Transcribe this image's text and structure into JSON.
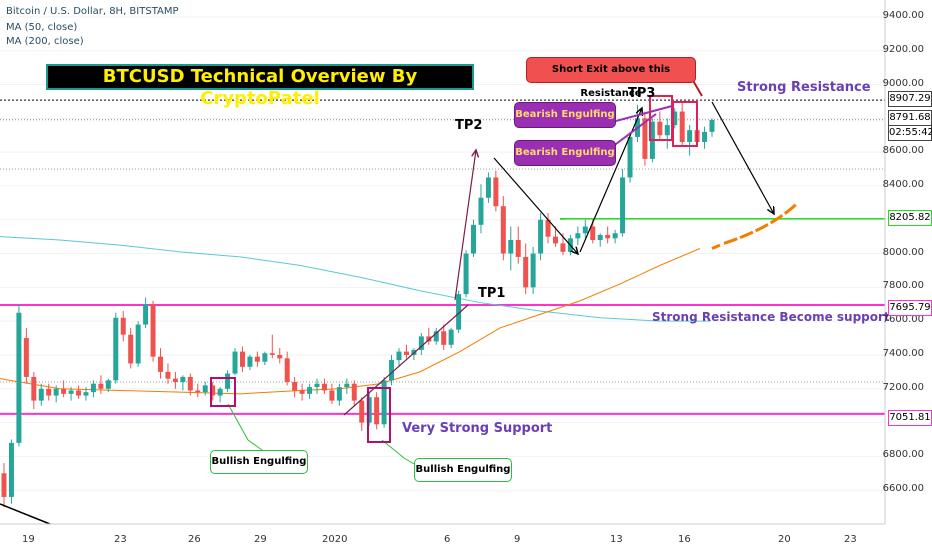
{
  "header": {
    "symbol": "Bitcoin / U.S. Dollar, 8H, BITSTAMP",
    "ma50": "MA (50, close)",
    "ma200": "MA (200, close)"
  },
  "banner": {
    "title": "BTCUSD Technical Overview By CryptoPatel"
  },
  "annotations": {
    "tp1": "TP1",
    "tp2": "TP2",
    "tp3": "TP3",
    "strong_resistance": "Strong Resistance",
    "resistance_support": "Strong Resistance Become support",
    "very_strong_support": "Very Strong Support",
    "short_exit": "Short Exit above this Resistance",
    "bearish_1": "Bearish Engulfing",
    "bearish_2": "Bearish Engulfing",
    "bullish_1": "Bullish Engulfing",
    "bullish_2": "Bullish Engulfing"
  },
  "price_tags": {
    "p1": "8907.29",
    "p2": "8791.68",
    "p3": "02:55:42",
    "p4": "8205.82",
    "p5": "7695.79",
    "p6": "7051.81"
  },
  "colors": {
    "up": "#26a69a",
    "down": "#ef5350",
    "ma50": "#f57c00",
    "ma200": "#5bc8d6",
    "magenta": "#ff33cc",
    "green_line": "#22dd22",
    "purple_text": "#6a3fb5"
  },
  "chart_data": {
    "type": "candlestick",
    "ylim": [
      6400,
      9500
    ],
    "y_ticks": [
      "9400.00",
      "9200.00",
      "9000.00",
      "8600.00",
      "8400.00",
      "8000.00",
      "7800.00",
      "7600.00",
      "7400.00",
      "7200.00",
      "6800.00",
      "6600.00"
    ],
    "x_ticks": [
      "19",
      "23",
      "26",
      "29",
      "2020",
      "6",
      "9",
      "13",
      "16",
      "20",
      "23"
    ],
    "horizontal_levels": [
      8907.29,
      8205.82,
      7695.79,
      7051.81
    ],
    "candles": [
      {
        "o": 6700,
        "h": 6760,
        "l": 6500,
        "c": 6560
      },
      {
        "o": 6560,
        "h": 6900,
        "l": 6520,
        "c": 6880
      },
      {
        "o": 6880,
        "h": 7700,
        "l": 6860,
        "c": 7650
      },
      {
        "o": 7500,
        "h": 7560,
        "l": 7230,
        "c": 7270
      },
      {
        "o": 7270,
        "h": 7300,
        "l": 7080,
        "c": 7130
      },
      {
        "o": 7130,
        "h": 7230,
        "l": 7100,
        "c": 7200
      },
      {
        "o": 7200,
        "h": 7230,
        "l": 7130,
        "c": 7160
      },
      {
        "o": 7160,
        "h": 7220,
        "l": 7120,
        "c": 7200
      },
      {
        "o": 7200,
        "h": 7250,
        "l": 7150,
        "c": 7170
      },
      {
        "o": 7170,
        "h": 7210,
        "l": 7130,
        "c": 7190
      },
      {
        "o": 7190,
        "h": 7220,
        "l": 7140,
        "c": 7160
      },
      {
        "o": 7160,
        "h": 7210,
        "l": 7130,
        "c": 7180
      },
      {
        "o": 7180,
        "h": 7250,
        "l": 7150,
        "c": 7230
      },
      {
        "o": 7230,
        "h": 7280,
        "l": 7170,
        "c": 7200
      },
      {
        "o": 7200,
        "h": 7260,
        "l": 7180,
        "c": 7250
      },
      {
        "o": 7250,
        "h": 7650,
        "l": 7230,
        "c": 7620
      },
      {
        "o": 7620,
        "h": 7660,
        "l": 7480,
        "c": 7520
      },
      {
        "o": 7520,
        "h": 7560,
        "l": 7320,
        "c": 7350
      },
      {
        "o": 7350,
        "h": 7600,
        "l": 7330,
        "c": 7580
      },
      {
        "o": 7580,
        "h": 7740,
        "l": 7560,
        "c": 7700
      },
      {
        "o": 7700,
        "h": 7720,
        "l": 7360,
        "c": 7390
      },
      {
        "o": 7390,
        "h": 7440,
        "l": 7260,
        "c": 7300
      },
      {
        "o": 7300,
        "h": 7350,
        "l": 7230,
        "c": 7260
      },
      {
        "o": 7260,
        "h": 7300,
        "l": 7200,
        "c": 7240
      },
      {
        "o": 7240,
        "h": 7280,
        "l": 7190,
        "c": 7270
      },
      {
        "o": 7270,
        "h": 7290,
        "l": 7160,
        "c": 7190
      },
      {
        "o": 7190,
        "h": 7230,
        "l": 7150,
        "c": 7180
      },
      {
        "o": 7180,
        "h": 7240,
        "l": 7160,
        "c": 7220
      },
      {
        "o": 7220,
        "h": 7240,
        "l": 7130,
        "c": 7160
      },
      {
        "o": 7160,
        "h": 7210,
        "l": 7120,
        "c": 7200
      },
      {
        "o": 7200,
        "h": 7310,
        "l": 7180,
        "c": 7290
      },
      {
        "o": 7290,
        "h": 7440,
        "l": 7280,
        "c": 7420
      },
      {
        "o": 7420,
        "h": 7450,
        "l": 7300,
        "c": 7330
      },
      {
        "o": 7330,
        "h": 7400,
        "l": 7310,
        "c": 7390
      },
      {
        "o": 7390,
        "h": 7420,
        "l": 7330,
        "c": 7360
      },
      {
        "o": 7360,
        "h": 7420,
        "l": 7340,
        "c": 7410
      },
      {
        "o": 7410,
        "h": 7520,
        "l": 7380,
        "c": 7400
      },
      {
        "o": 7400,
        "h": 7440,
        "l": 7350,
        "c": 7380
      },
      {
        "o": 7380,
        "h": 7420,
        "l": 7220,
        "c": 7240
      },
      {
        "o": 7240,
        "h": 7270,
        "l": 7150,
        "c": 7190
      },
      {
        "o": 7190,
        "h": 7230,
        "l": 7130,
        "c": 7170
      },
      {
        "o": 7170,
        "h": 7230,
        "l": 7140,
        "c": 7210
      },
      {
        "o": 7210,
        "h": 7260,
        "l": 7170,
        "c": 7230
      },
      {
        "o": 7230,
        "h": 7260,
        "l": 7170,
        "c": 7190
      },
      {
        "o": 7190,
        "h": 7230,
        "l": 7110,
        "c": 7130
      },
      {
        "o": 7130,
        "h": 7230,
        "l": 7100,
        "c": 7210
      },
      {
        "o": 7210,
        "h": 7260,
        "l": 7170,
        "c": 7230
      },
      {
        "o": 7230,
        "h": 7250,
        "l": 7100,
        "c": 7130
      },
      {
        "o": 7130,
        "h": 7150,
        "l": 6950,
        "c": 7000
      },
      {
        "o": 7000,
        "h": 7180,
        "l": 6980,
        "c": 7150
      },
      {
        "o": 7150,
        "h": 7180,
        "l": 6960,
        "c": 6990
      },
      {
        "o": 6990,
        "h": 7270,
        "l": 6970,
        "c": 7250
      },
      {
        "o": 7250,
        "h": 7400,
        "l": 7220,
        "c": 7370
      },
      {
        "o": 7370,
        "h": 7440,
        "l": 7330,
        "c": 7420
      },
      {
        "o": 7420,
        "h": 7460,
        "l": 7380,
        "c": 7400
      },
      {
        "o": 7400,
        "h": 7440,
        "l": 7370,
        "c": 7430
      },
      {
        "o": 7430,
        "h": 7530,
        "l": 7400,
        "c": 7510
      },
      {
        "o": 7510,
        "h": 7560,
        "l": 7460,
        "c": 7480
      },
      {
        "o": 7480,
        "h": 7560,
        "l": 7460,
        "c": 7540
      },
      {
        "o": 7540,
        "h": 7580,
        "l": 7430,
        "c": 7460
      },
      {
        "o": 7460,
        "h": 7560,
        "l": 7440,
        "c": 7550
      },
      {
        "o": 7550,
        "h": 7780,
        "l": 7530,
        "c": 7760
      },
      {
        "o": 7760,
        "h": 8020,
        "l": 7740,
        "c": 8000
      },
      {
        "o": 8000,
        "h": 8200,
        "l": 7980,
        "c": 8170
      },
      {
        "o": 8170,
        "h": 8410,
        "l": 8120,
        "c": 8330
      },
      {
        "o": 8330,
        "h": 8480,
        "l": 8300,
        "c": 8450
      },
      {
        "o": 8450,
        "h": 8490,
        "l": 8250,
        "c": 8280
      },
      {
        "o": 8280,
        "h": 8340,
        "l": 7960,
        "c": 8000
      },
      {
        "o": 8000,
        "h": 8160,
        "l": 7900,
        "c": 8080
      },
      {
        "o": 8080,
        "h": 8160,
        "l": 7940,
        "c": 7980
      },
      {
        "o": 7980,
        "h": 8060,
        "l": 7760,
        "c": 7800
      },
      {
        "o": 7800,
        "h": 8040,
        "l": 7760,
        "c": 8000
      },
      {
        "o": 8000,
        "h": 8240,
        "l": 7960,
        "c": 8200
      },
      {
        "o": 8200,
        "h": 8240,
        "l": 8060,
        "c": 8100
      },
      {
        "o": 8100,
        "h": 8160,
        "l": 8040,
        "c": 8060
      },
      {
        "o": 8060,
        "h": 8120,
        "l": 7990,
        "c": 8010
      },
      {
        "o": 8010,
        "h": 8110,
        "l": 7990,
        "c": 8090
      },
      {
        "o": 8090,
        "h": 8160,
        "l": 8050,
        "c": 8120
      },
      {
        "o": 8120,
        "h": 8200,
        "l": 8090,
        "c": 8160
      },
      {
        "o": 8160,
        "h": 8200,
        "l": 8060,
        "c": 8080
      },
      {
        "o": 8080,
        "h": 8120,
        "l": 8040,
        "c": 8110
      },
      {
        "o": 8110,
        "h": 8160,
        "l": 8060,
        "c": 8090
      },
      {
        "o": 8090,
        "h": 8140,
        "l": 8060,
        "c": 8120
      },
      {
        "o": 8120,
        "h": 8500,
        "l": 8100,
        "c": 8450
      },
      {
        "o": 8450,
        "h": 8720,
        "l": 8420,
        "c": 8690
      },
      {
        "o": 8690,
        "h": 8880,
        "l": 8660,
        "c": 8800
      },
      {
        "o": 8800,
        "h": 8840,
        "l": 8520,
        "c": 8560
      },
      {
        "o": 8560,
        "h": 8800,
        "l": 8540,
        "c": 8780
      },
      {
        "o": 8780,
        "h": 8840,
        "l": 8680,
        "c": 8700
      },
      {
        "o": 8700,
        "h": 8800,
        "l": 8620,
        "c": 8760
      },
      {
        "o": 8760,
        "h": 8860,
        "l": 8740,
        "c": 8840
      },
      {
        "o": 8840,
        "h": 8900,
        "l": 8640,
        "c": 8660
      },
      {
        "o": 8660,
        "h": 8760,
        "l": 8580,
        "c": 8730
      },
      {
        "o": 8730,
        "h": 8790,
        "l": 8640,
        "c": 8660
      },
      {
        "o": 8660,
        "h": 8750,
        "l": 8620,
        "c": 8720
      },
      {
        "o": 8720,
        "h": 8800,
        "l": 8690,
        "c": 8790
      }
    ],
    "ma50": [
      [
        0,
        7260
      ],
      [
        60,
        7200
      ],
      [
        120,
        7190
      ],
      [
        180,
        7180
      ],
      [
        240,
        7170
      ],
      [
        300,
        7190
      ],
      [
        340,
        7200
      ],
      [
        380,
        7230
      ],
      [
        420,
        7300
      ],
      [
        460,
        7420
      ],
      [
        500,
        7560
      ],
      [
        540,
        7640
      ],
      [
        580,
        7720
      ],
      [
        620,
        7820
      ],
      [
        660,
        7930
      ],
      [
        700,
        8030
      ]
    ],
    "ma200": [
      [
        0,
        8100
      ],
      [
        60,
        8080
      ],
      [
        120,
        8050
      ],
      [
        180,
        8010
      ],
      [
        240,
        7980
      ],
      [
        300,
        7930
      ],
      [
        360,
        7860
      ],
      [
        420,
        7780
      ],
      [
        480,
        7710
      ],
      [
        540,
        7660
      ],
      [
        600,
        7620
      ],
      [
        660,
        7600
      ],
      [
        710,
        7600
      ]
    ]
  }
}
